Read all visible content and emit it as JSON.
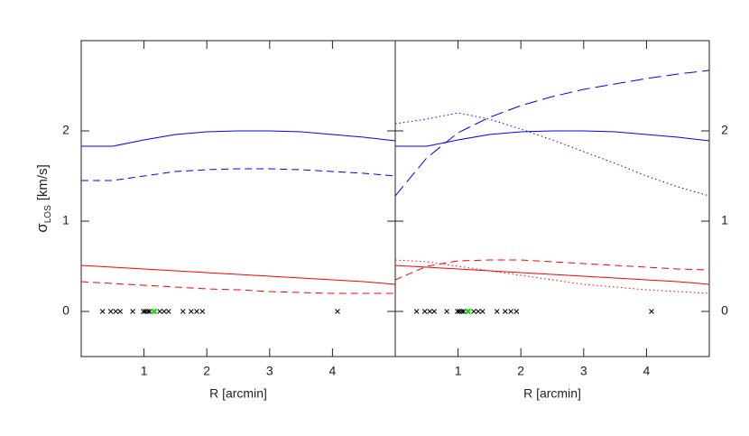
{
  "chart_data": [
    {
      "type": "line",
      "xlabel": "R [arcmin]",
      "ylabel": {
        "symbol": "σ",
        "subscript": "LOS",
        "unit": "[km/s]"
      },
      "ytick_side": "left",
      "xlim": [
        0,
        5
      ],
      "ylim": [
        -0.5,
        3
      ],
      "xticks": [
        1,
        2,
        3,
        4
      ],
      "yticks": [
        0,
        1,
        2
      ],
      "x": [
        0,
        0.5,
        1,
        1.5,
        2,
        2.5,
        3,
        3.5,
        4,
        4.5,
        5
      ],
      "series": [
        {
          "color": "#0000ff",
          "dash": "solid",
          "values": [
            1.83,
            1.83,
            1.9,
            1.96,
            1.99,
            2.0,
            2.0,
            1.99,
            1.96,
            1.93,
            1.89
          ]
        },
        {
          "color": "#0000ff",
          "dash": "dashed",
          "values": [
            1.45,
            1.45,
            1.5,
            1.55,
            1.57,
            1.58,
            1.58,
            1.57,
            1.55,
            1.53,
            1.5
          ]
        },
        {
          "color": "#ff0000",
          "dash": "solid",
          "values": [
            0.51,
            0.49,
            0.47,
            0.45,
            0.43,
            0.41,
            0.39,
            0.37,
            0.35,
            0.33,
            0.3
          ]
        },
        {
          "color": "#ff0000",
          "dash": "dashed",
          "values": [
            0.33,
            0.31,
            0.29,
            0.27,
            0.25,
            0.24,
            0.22,
            0.21,
            0.2,
            0.2,
            0.2
          ]
        }
      ],
      "points": {
        "color": "#000000",
        "x": [
          0.34,
          0.47,
          0.55,
          0.62,
          0.82,
          0.99,
          1.02,
          1.06,
          1.09,
          1.25,
          1.32,
          1.39,
          1.62,
          1.75,
          1.84,
          1.93,
          4.08
        ],
        "values": [
          0,
          0,
          0,
          0,
          0,
          0,
          0,
          0,
          0,
          0,
          0,
          0,
          0,
          0,
          0,
          0,
          0
        ]
      },
      "highlight": {
        "color": "#00e000",
        "x": [
          1.16
        ],
        "values": [
          0
        ]
      }
    },
    {
      "type": "line",
      "xlabel": "R [arcmin]",
      "ytick_side": "right",
      "xlim": [
        0,
        5
      ],
      "ylim": [
        -0.5,
        3
      ],
      "xticks": [
        1,
        2,
        3,
        4
      ],
      "yticks": [
        0,
        1,
        2
      ],
      "x": [
        0,
        0.5,
        1,
        1.5,
        2,
        2.5,
        3,
        3.5,
        4,
        4.5,
        5
      ],
      "series": [
        {
          "color": "#0000ff",
          "dash": "solid",
          "values": [
            1.83,
            1.83,
            1.9,
            1.96,
            1.99,
            2.0,
            2.0,
            1.99,
            1.96,
            1.93,
            1.89
          ]
        },
        {
          "color": "#0000ff",
          "dash": "longdash",
          "values": [
            1.28,
            1.7,
            1.98,
            2.15,
            2.28,
            2.38,
            2.46,
            2.52,
            2.58,
            2.63,
            2.67
          ]
        },
        {
          "color": "#0000ff",
          "dash": "dotted",
          "values": [
            2.08,
            2.13,
            2.2,
            2.13,
            2.02,
            1.9,
            1.77,
            1.64,
            1.5,
            1.38,
            1.28
          ]
        },
        {
          "color": "#ff0000",
          "dash": "solid",
          "values": [
            0.51,
            0.49,
            0.47,
            0.45,
            0.43,
            0.41,
            0.39,
            0.37,
            0.35,
            0.33,
            0.3
          ]
        },
        {
          "color": "#ff0000",
          "dash": "dashed",
          "values": [
            0.35,
            0.5,
            0.56,
            0.57,
            0.57,
            0.55,
            0.53,
            0.51,
            0.49,
            0.47,
            0.46
          ]
        },
        {
          "color": "#ff0000",
          "dash": "dotted",
          "values": [
            0.57,
            0.55,
            0.5,
            0.45,
            0.4,
            0.35,
            0.3,
            0.27,
            0.24,
            0.22,
            0.2
          ]
        }
      ],
      "points": {
        "color": "#000000",
        "x": [
          0.34,
          0.47,
          0.55,
          0.62,
          0.82,
          0.99,
          1.02,
          1.06,
          1.09,
          1.25,
          1.32,
          1.39,
          1.62,
          1.75,
          1.84,
          1.93,
          4.08
        ],
        "values": [
          0,
          0,
          0,
          0,
          0,
          0,
          0,
          0,
          0,
          0,
          0,
          0,
          0,
          0,
          0,
          0,
          0
        ]
      },
      "highlight": {
        "color": "#00e000",
        "x": [
          1.16
        ],
        "values": [
          0
        ]
      }
    }
  ]
}
